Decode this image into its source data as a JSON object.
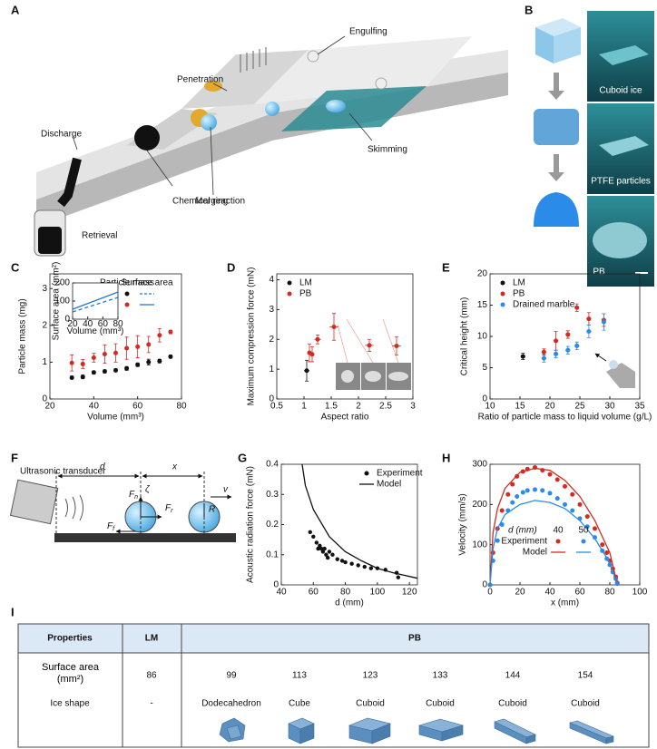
{
  "panel_labels": [
    "A",
    "B",
    "C",
    "D",
    "E",
    "F",
    "G",
    "H",
    "I"
  ],
  "panel_a": {
    "labels": [
      "Penetration",
      "Engulfing",
      "Discharge",
      "Merging",
      "Skimming",
      "Chemical reaction",
      "Retrieval"
    ]
  },
  "panel_b": {
    "labels": [
      "Cuboid ice",
      "PTFE particles",
      "PB"
    ]
  },
  "panel_f": {
    "labels": {
      "transducer": "Ultrasonic transducer",
      "d": "d",
      "x": "x",
      "zeta": "ζ",
      "v": "v",
      "R": "R"
    },
    "forces": [
      {
        "main": "F",
        "sub": "r"
      },
      {
        "main": "F",
        "sub": "f"
      },
      {
        "main": "F",
        "sub": "n"
      }
    ]
  },
  "chart_data": [
    {
      "type": "scatter",
      "xlabel": "Volume (mm³)",
      "ylabel": "Particle mass (mg)",
      "xlim": [
        20,
        80
      ],
      "xticks": [
        20,
        40,
        60,
        80
      ],
      "ylim": [
        0,
        3.4
      ],
      "yticks": [
        0,
        1,
        2,
        3
      ],
      "legend": {
        "columns": [
          "Particle mass",
          "Surface area"
        ],
        "rows": [
          "LM",
          "PB"
        ]
      },
      "series": [
        {
          "color": "#111111",
          "style": "points",
          "x": [
            30,
            35,
            40,
            45,
            50,
            55,
            60,
            65,
            70,
            75
          ],
          "values": [
            0.58,
            0.6,
            0.72,
            0.75,
            0.78,
            0.83,
            0.93,
            1.0,
            1.03,
            1.15
          ],
          "errors": [
            0.04,
            0.05,
            0.04,
            0.04,
            0.04,
            0.05,
            0.05,
            0.08,
            0.05,
            0.04
          ]
        },
        {
          "color": "#d42a20",
          "style": "points",
          "x": [
            30,
            35,
            40,
            45,
            50,
            55,
            60,
            65,
            70,
            75
          ],
          "values": [
            0.98,
            0.95,
            1.12,
            1.22,
            1.25,
            1.38,
            1.42,
            1.48,
            1.73,
            1.82
          ],
          "errors": [
            0.22,
            0.12,
            0.12,
            0.25,
            0.25,
            0.3,
            0.3,
            0.22,
            0.18,
            0.05
          ]
        }
      ]
    },
    {
      "type": "line",
      "xlabel": "Volume (mm³)",
      "ylabel": "Surface area (mm²)",
      "xlim": [
        20,
        80
      ],
      "xticks": [
        20,
        40,
        60,
        80
      ],
      "ylim": [
        0,
        200
      ],
      "yticks": [
        0,
        100,
        200
      ],
      "series": [
        {
          "color": "#1f78d1",
          "style": "line",
          "dash": true,
          "x": [
            20,
            80
          ],
          "values": [
            40,
            120
          ]
        },
        {
          "color": "#1f78d1",
          "style": "line",
          "x": [
            20,
            80
          ],
          "values": [
            55,
            150
          ]
        }
      ]
    },
    {
      "type": "scatter",
      "xlabel": "Aspect ratio",
      "ylabel": "Maximum compression force (mN)",
      "xlim": [
        0.5,
        3
      ],
      "xticks": [
        0.5,
        1,
        1.5,
        2,
        2.5,
        3
      ],
      "ylim": [
        0,
        4.2
      ],
      "yticks": [
        0,
        1,
        2,
        3,
        4
      ],
      "series": [
        {
          "name": "LM",
          "color": "#111111",
          "style": "points",
          "x": [
            1.05
          ],
          "values": [
            0.95
          ],
          "errors": [
            0.35
          ],
          "xerrors": [
            0.05
          ]
        },
        {
          "name": "PB",
          "color": "#d42a20",
          "style": "points",
          "x": [
            1.1,
            1.15,
            1.25,
            1.55,
            2.2,
            2.7
          ],
          "values": [
            1.55,
            1.5,
            2.0,
            2.42,
            1.8,
            1.78
          ],
          "errors": [
            0.3,
            0.25,
            0.15,
            0.45,
            0.2,
            0.3
          ],
          "xerrors": [
            0.04,
            0.04,
            0.06,
            0.08,
            0.08,
            0.08
          ]
        }
      ]
    },
    {
      "type": "scatter",
      "xlabel": "Ratio of particle mass to liquid volume (g/L)",
      "ylabel": "Critical height (mm)",
      "xlim": [
        10,
        35
      ],
      "xticks": [
        10,
        15,
        20,
        25,
        30,
        35
      ],
      "ylim": [
        0,
        20
      ],
      "yticks": [
        0,
        5,
        10,
        15,
        20
      ],
      "series": [
        {
          "name": "LM",
          "color": "#111111",
          "style": "points",
          "x": [
            15.5
          ],
          "values": [
            6.8
          ],
          "errors": [
            0.5
          ],
          "xerrors": [
            0.4
          ]
        },
        {
          "name": "PB",
          "color": "#d42a20",
          "style": "points",
          "x": [
            19,
            21,
            23,
            24.5,
            26.5,
            29
          ],
          "values": [
            7.5,
            9.3,
            10.3,
            14.6,
            12.8,
            12.6
          ],
          "errors": [
            0.5,
            1.5,
            0.6,
            0.6,
            1.0,
            1.0
          ],
          "xerrors": [
            0.4,
            0.4,
            0.4,
            0.4,
            0.4,
            0.4
          ]
        },
        {
          "name": "Drained marble",
          "color": "#2b8be8",
          "style": "points",
          "x": [
            19,
            21,
            23,
            24.5,
            26.5,
            29
          ],
          "values": [
            6.5,
            7.2,
            7.8,
            8.5,
            10.8,
            12.3
          ],
          "errors": [
            0.6,
            0.6,
            0.6,
            0.6,
            1.0,
            1.3
          ],
          "xerrors": [
            0.4,
            0.4,
            0.4,
            0.4,
            0.4,
            0.4
          ]
        }
      ]
    },
    {
      "type": "scatter",
      "xlabel": "d (mm)",
      "ylabel": "Acoustic radiation force (mN)",
      "xlim": [
        40,
        125
      ],
      "xticks": [
        40,
        60,
        80,
        100,
        120
      ],
      "ylim": [
        0,
        0.4
      ],
      "yticks": [
        0,
        0.1,
        0.2,
        0.3,
        0.4
      ],
      "series": [
        {
          "name": "Experiment",
          "color": "#111111",
          "style": "points",
          "x": [
            58,
            60,
            62,
            63,
            64,
            65,
            66,
            67,
            68,
            69,
            70,
            72,
            75,
            78,
            80,
            84,
            88,
            92,
            96,
            100,
            105,
            112,
            113
          ],
          "values": [
            0.175,
            0.16,
            0.14,
            0.12,
            0.13,
            0.12,
            0.11,
            0.12,
            0.1,
            0.09,
            0.11,
            0.1,
            0.085,
            0.08,
            0.075,
            0.07,
            0.065,
            0.06,
            0.055,
            0.055,
            0.05,
            0.04,
            0.025
          ]
        },
        {
          "name": "Model",
          "color": "#111111",
          "style": "line",
          "x": [
            53,
            55,
            60,
            70,
            80,
            90,
            100,
            110,
            120,
            125
          ],
          "values": [
            0.4,
            0.33,
            0.25,
            0.16,
            0.11,
            0.08,
            0.055,
            0.04,
            0.028,
            0.022
          ]
        }
      ]
    },
    {
      "type": "scatter",
      "xlabel": "x (mm)",
      "ylabel": "Velocity (mm/s)",
      "xlim": [
        0,
        100
      ],
      "xticks": [
        0,
        20,
        40,
        60,
        80,
        100
      ],
      "ylim": [
        0,
        300
      ],
      "yticks": [
        0,
        100,
        200,
        300
      ],
      "legend": {
        "title": "d (mm)",
        "columns": [
          40,
          50
        ],
        "rows": [
          "Experiment",
          "Model"
        ]
      },
      "series": [
        {
          "color": "#d42a20",
          "style": "points",
          "x": [
            0,
            2,
            5,
            8,
            12,
            15,
            18,
            22,
            25,
            30,
            35,
            40,
            45,
            50,
            55,
            60,
            65,
            70,
            75,
            78,
            80,
            82,
            84,
            85
          ],
          "values": [
            0,
            80,
            140,
            185,
            225,
            250,
            270,
            282,
            288,
            292,
            285,
            275,
            262,
            245,
            225,
            200,
            170,
            140,
            100,
            80,
            60,
            40,
            20,
            5
          ]
        },
        {
          "color": "#2b8be8",
          "style": "points",
          "x": [
            0,
            2,
            5,
            8,
            12,
            15,
            18,
            22,
            25,
            30,
            35,
            40,
            45,
            50,
            55,
            60,
            65,
            70,
            75,
            78,
            80,
            82,
            84,
            85
          ],
          "values": [
            0,
            60,
            110,
            150,
            185,
            205,
            220,
            230,
            235,
            237,
            235,
            228,
            215,
            200,
            185,
            165,
            145,
            118,
            85,
            65,
            50,
            32,
            15,
            3
          ]
        },
        {
          "color": "#d42a20",
          "style": "line",
          "x": [
            0,
            2,
            5,
            10,
            20,
            30,
            40,
            50,
            60,
            70,
            80,
            85
          ],
          "values": [
            0,
            130,
            190,
            240,
            280,
            290,
            285,
            260,
            220,
            160,
            80,
            0
          ]
        },
        {
          "color": "#2b8be8",
          "style": "line",
          "x": [
            0,
            2,
            5,
            10,
            20,
            30,
            40,
            50,
            60,
            70,
            80,
            85
          ],
          "values": [
            0,
            90,
            140,
            175,
            200,
            210,
            205,
            190,
            160,
            115,
            55,
            0
          ]
        }
      ]
    }
  ],
  "table": {
    "header": [
      "Properties",
      "LM",
      "PB"
    ],
    "rows": [
      [
        "Surface area (mm²)",
        86,
        99,
        113,
        123,
        133,
        144,
        154
      ],
      [
        "Ice shape",
        "-",
        "Dodecahedron",
        "Cube",
        "Cuboid",
        "Cuboid",
        "Cuboid",
        "Cuboid"
      ]
    ]
  }
}
